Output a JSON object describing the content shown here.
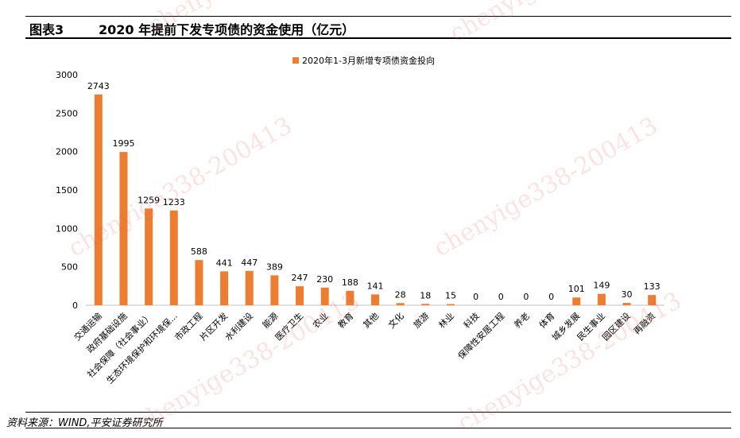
{
  "figure": {
    "label": "图表3",
    "title": "2020 年提前下发专项债的资金使用（亿元）",
    "source": "资料来源：WIND,平安证券研究所"
  },
  "watermark": "chenyige338-200413",
  "colors": {
    "bar": "#ED7D31",
    "axis": "#000000",
    "baseline": "#BFBFBF"
  },
  "chart_data": {
    "type": "bar",
    "categories": [
      "交通运输",
      "政府基础设施",
      "社会保障（社会事业）",
      "生态环境保护和环境保...",
      "市政工程",
      "片区开发",
      "水利建设",
      "能源",
      "医疗卫生",
      "农业",
      "教育",
      "其他",
      "文化",
      "旅游",
      "林业",
      "科技",
      "保障性安居工程",
      "养老",
      "体育",
      "城乡发展",
      "民生事业",
      "园区建设",
      "再融资"
    ],
    "series": [
      {
        "name": "2020年1-3月新增专项债资金投向",
        "values": [
          2743,
          1995,
          1259,
          1233,
          588,
          441,
          447,
          389,
          247,
          230,
          188,
          141,
          28,
          18,
          15,
          0,
          0,
          0,
          0,
          101,
          149,
          30,
          133
        ]
      }
    ],
    "ylim": [
      0,
      3000
    ],
    "yticks": [
      0,
      500,
      1000,
      1500,
      2000,
      2500,
      3000
    ],
    "legend_position": "top",
    "data_labels": true,
    "grid": false
  }
}
